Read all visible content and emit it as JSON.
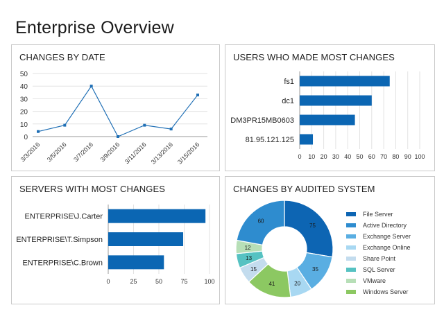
{
  "page": {
    "title": "Enterprise Overview"
  },
  "panels": {
    "changes_by_date": {
      "title": "CHANGES BY DATE"
    },
    "users": {
      "title": "USERS WHO MADE MOST CHANGES"
    },
    "servers": {
      "title": "SERVERS WITH MOST CHANGES"
    },
    "audited": {
      "title": "CHANGES BY AUDITED SYSTEM"
    }
  },
  "chart_data": [
    {
      "type": "line",
      "title": "CHANGES BY DATE",
      "categories": [
        "3/3/2016",
        "3/5/2016",
        "3/7/2016",
        "3/9/2016",
        "3/11/2016",
        "3/13/2016",
        "3/15/2016"
      ],
      "values": [
        4,
        9,
        40,
        0,
        9,
        6,
        33
      ],
      "ylim": [
        0,
        50
      ],
      "yticks": [
        0,
        10,
        20,
        30,
        40,
        50
      ],
      "color": "#1f6fb5",
      "grid": true
    },
    {
      "type": "bar",
      "orientation": "horizontal",
      "title": "USERS WHO MADE MOST CHANGES",
      "categories": [
        "fs1",
        "dc1",
        "DM3PR15MB0603",
        "81.95.121.125"
      ],
      "values": [
        75,
        60,
        46,
        11
      ],
      "xlim": [
        0,
        100
      ],
      "xticks": [
        0,
        10,
        20,
        30,
        40,
        50,
        60,
        70,
        80,
        90,
        100
      ],
      "color": "#0b66b3",
      "grid": true
    },
    {
      "type": "bar",
      "orientation": "horizontal",
      "title": "SERVERS WITH MOST CHANGES",
      "categories": [
        "ENTERPRISE\\J.Carter",
        "ENTERPRISE\\T.Simpson",
        "ENTERPRISE\\C.Brown"
      ],
      "values": [
        96,
        74,
        55
      ],
      "xlim": [
        0,
        100
      ],
      "xticks": [
        0,
        25,
        50,
        75,
        100
      ],
      "color": "#0b66b3",
      "grid": true
    },
    {
      "type": "pie",
      "donut": true,
      "title": "CHANGES BY AUDITED SYSTEM",
      "categories": [
        "File Server",
        "Active Directory",
        "Exchange Server",
        "Exchange Online",
        "Share Point",
        "SQL Server",
        "VMware",
        "Windows Server"
      ],
      "values": [
        75,
        60,
        35,
        20,
        15,
        13,
        12,
        41
      ],
      "slice_order": [
        "File Server",
        "Exchange Server",
        "Exchange Online",
        "Windows Server",
        "Share Point",
        "SQL Server",
        "VMware",
        "Active Directory"
      ],
      "colors": [
        "#0d65b3",
        "#2e8ccf",
        "#5aaee2",
        "#a8d8f2",
        "#c3dcee",
        "#56c2c2",
        "#b7dfb7",
        "#8cc862"
      ],
      "legend_position": "right"
    }
  ]
}
